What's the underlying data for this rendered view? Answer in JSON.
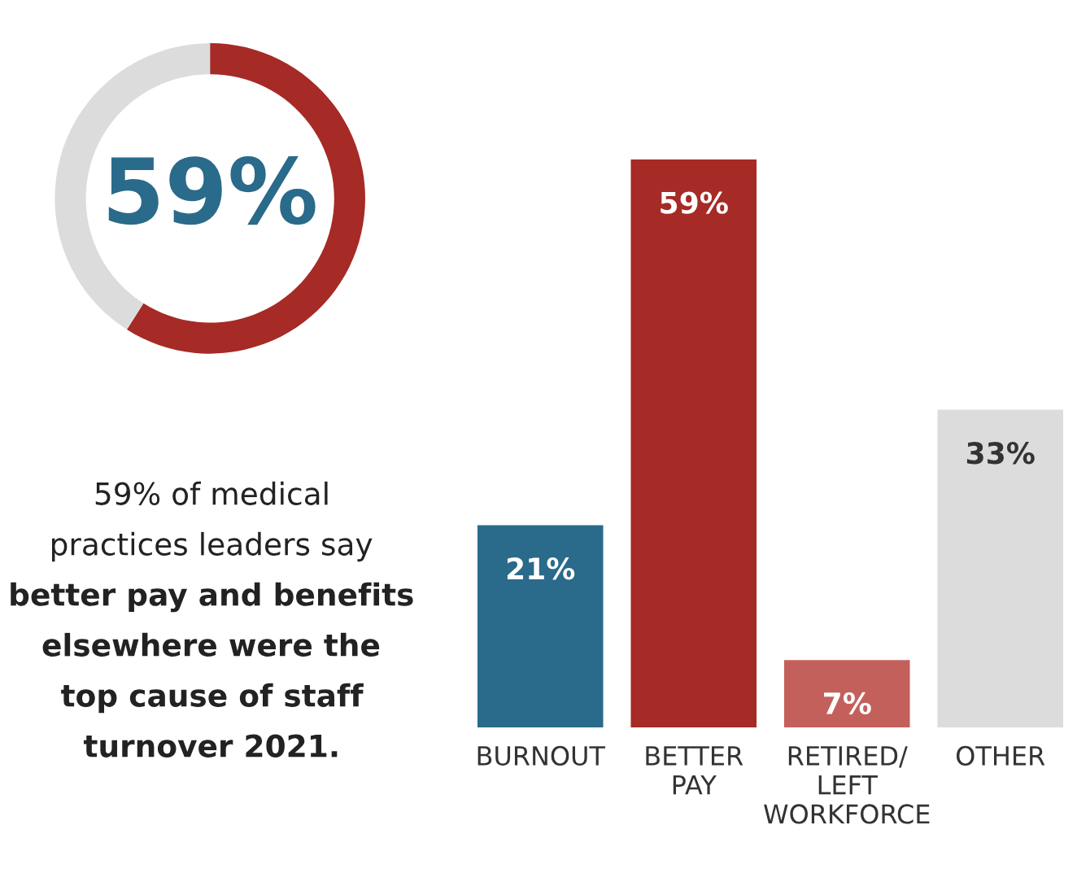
{
  "chart_data": [
    {
      "type": "donut",
      "categories": [
        null,
        null
      ],
      "values": [
        59,
        41
      ],
      "colors": [
        "#a62a25",
        "#dcdcdc"
      ],
      "annotations": [
        "59%"
      ]
    },
    {
      "type": "other",
      "annotations": [
        "59% of medical practices leaders say",
        "better pay and benefits elsewhere were the top cause of staff turnover 2021."
      ]
    },
    {
      "type": "bar",
      "categories": [
        "BURNOUT",
        "BETTER\nPAY",
        "RETIRED/\nLEFT\nWORKFORCE",
        "OTHER"
      ],
      "values": [
        21,
        59,
        7,
        33
      ],
      "colors": [
        "#2a6a8a",
        "#a62a25",
        "#c4605c",
        "#dcdcdc"
      ],
      "value_labels": [
        "21%",
        "59%",
        "7%",
        "33%"
      ]
    }
  ]
}
